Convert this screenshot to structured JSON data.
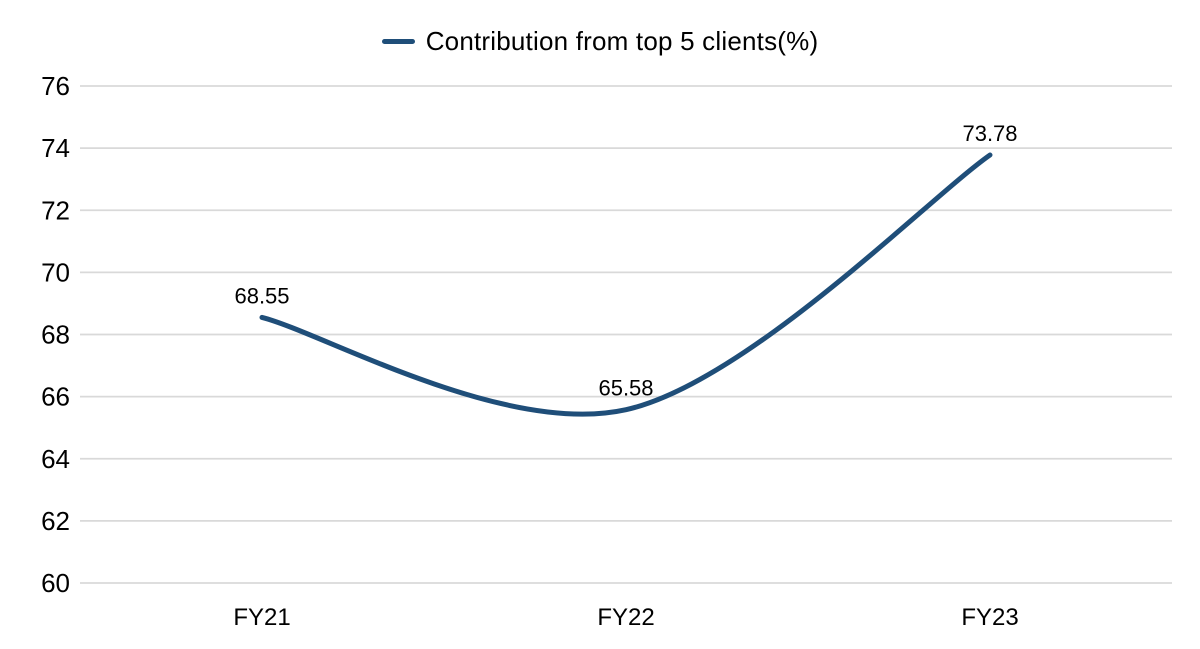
{
  "legend": {
    "label": "Contribution from top 5 clients(%)"
  },
  "chart_data": {
    "type": "line",
    "title": "Contribution from top 5 clients(%)",
    "categories": [
      "FY21",
      "FY22",
      "FY23"
    ],
    "series": [
      {
        "name": "Contribution from top 5 clients(%)",
        "values": [
          68.55,
          65.58,
          73.78
        ],
        "data_labels": [
          "68.55",
          "65.58",
          "73.78"
        ]
      }
    ],
    "xlabel": "",
    "ylabel": "",
    "ylim": [
      60,
      76
    ],
    "yticks": [
      60,
      62,
      64,
      66,
      68,
      70,
      72,
      74,
      76
    ],
    "grid": true,
    "smooth": true,
    "legend_position": "top-center",
    "colors": {
      "line": "#1F4E79",
      "gridline": "#D9D9D9",
      "text": "#000000",
      "background": "#FFFFFF"
    }
  }
}
